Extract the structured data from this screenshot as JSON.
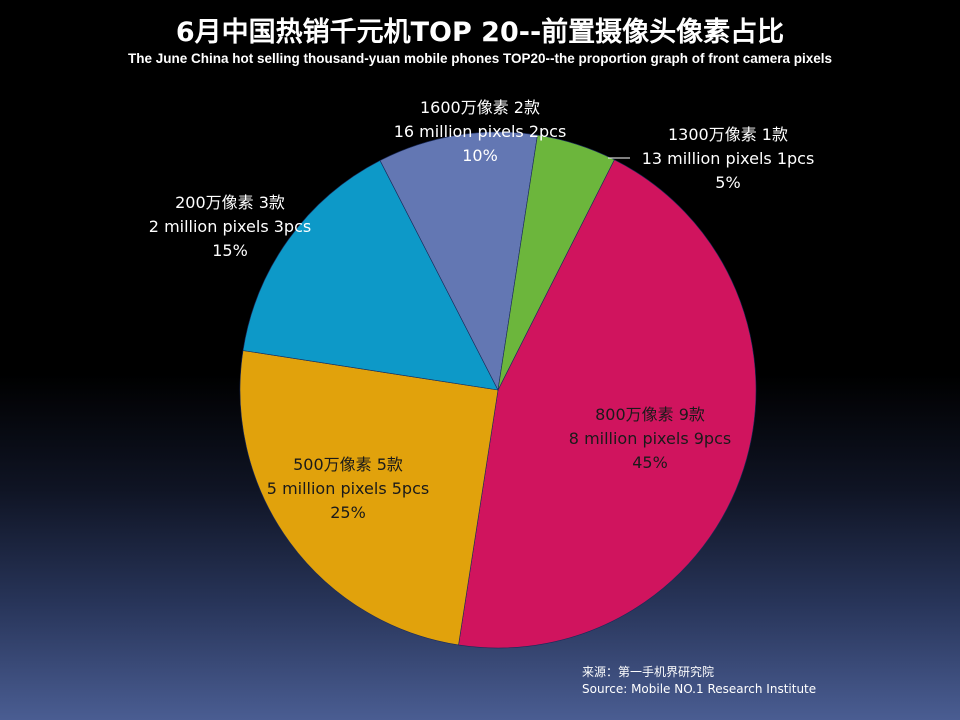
{
  "title_cn": "6月中国热销千元机TOP 20--前置摄像头像素占比",
  "title_en": "The June  China hot selling thousand-yuan mobile phones TOP20--the proportion graph of front camera pixels",
  "chart_data": {
    "type": "pie",
    "title": "6月中国热销千元机TOP 20--前置摄像头像素占比",
    "subtitle": "The June  China hot selling thousand-yuan mobile phones TOP20--the proportion graph of front camera pixels",
    "slices": [
      {
        "key": "s800",
        "label_cn": "800万像素 9款",
        "label_en": "8 million pixels 9pcs",
        "pct": "45%",
        "value": 45,
        "color": "#d0145e"
      },
      {
        "key": "s500",
        "label_cn": "500万像素 5款",
        "label_en": "5 million pixels 5pcs",
        "pct": "25%",
        "value": 25,
        "color": "#e1a20c"
      },
      {
        "key": "s200",
        "label_cn": "200万像素 3款",
        "label_en": "2 million pixels 3pcs",
        "pct": "15%",
        "value": 15,
        "color": "#0d99c8"
      },
      {
        "key": "s1600",
        "label_cn": "1600万像素 2款",
        "label_en": "16 million pixels 2pcs",
        "pct": "10%",
        "value": 10,
        "color": "#6377b3"
      },
      {
        "key": "s1300",
        "label_cn": "1300万像素 1款",
        "label_en": "13 million pixels 1pcs",
        "pct": "5%",
        "value": 5,
        "color": "#6cb63c"
      }
    ]
  },
  "source": {
    "cn": "来源：第一手机界研究院",
    "en": "Source: Mobile NO.1 Research Institute"
  }
}
